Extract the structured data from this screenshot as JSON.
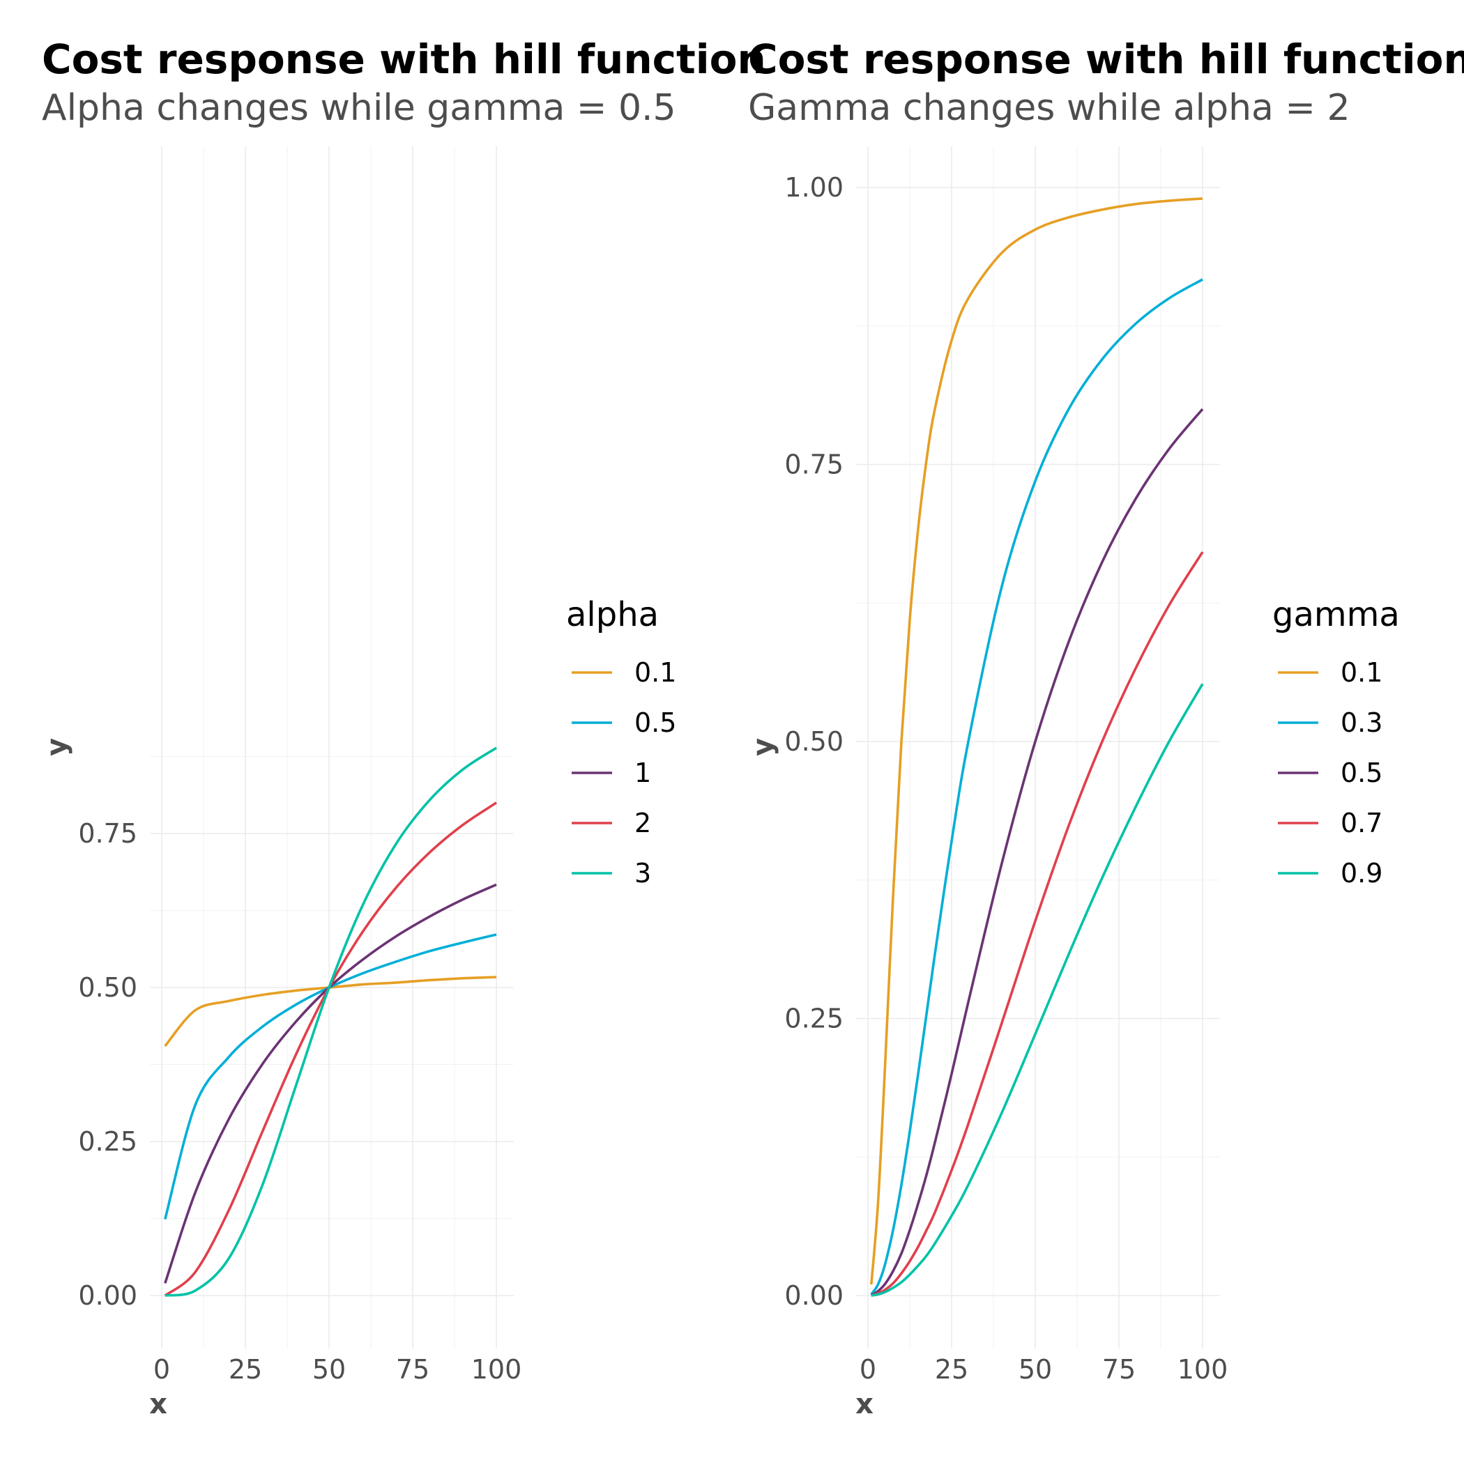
{
  "chart_data": [
    {
      "type": "line",
      "title": "Cost response with hill function",
      "subtitle": "Alpha changes while gamma = 0.5",
      "xlabel": "x",
      "ylabel": "y",
      "xlim": [
        0,
        100
      ],
      "ylim": [
        0,
        0.9
      ],
      "x_ticks": [
        0,
        25,
        50,
        75,
        100
      ],
      "x_tick_labels": [
        "0",
        "25",
        "50",
        "75",
        "100"
      ],
      "y_ticks": [
        0,
        0.25,
        0.5,
        0.75
      ],
      "y_tick_labels": [
        "0.00",
        "0.25",
        "0.50",
        "0.75"
      ],
      "grid": true,
      "legend_placement": "right",
      "legend_title": "alpha",
      "fixed_gamma": 0.5,
      "x": [
        1,
        10,
        20,
        30,
        40,
        50,
        60,
        70,
        80,
        90,
        100
      ],
      "series": [
        {
          "name": "0.1",
          "color": "#E69F24",
          "values": [
            0.405,
            0.463,
            0.478,
            0.488,
            0.495,
            0.5,
            0.505,
            0.508,
            0.512,
            0.515,
            0.517
          ]
        },
        {
          "name": "0.5",
          "color": "#00AFD7",
          "values": [
            0.124,
            0.309,
            0.387,
            0.436,
            0.472,
            0.5,
            0.523,
            0.542,
            0.559,
            0.573,
            0.586
          ]
        },
        {
          "name": "1",
          "color": "#6B3374",
          "values": [
            0.02,
            0.167,
            0.286,
            0.375,
            0.444,
            0.5,
            0.545,
            0.583,
            0.615,
            0.643,
            0.667
          ]
        },
        {
          "name": "2",
          "color": "#E0404C",
          "values": [
            0.0,
            0.038,
            0.138,
            0.265,
            0.39,
            0.5,
            0.59,
            0.662,
            0.719,
            0.764,
            0.8
          ]
        },
        {
          "name": "3",
          "color": "#00C2A7",
          "values": [
            0.0,
            0.008,
            0.06,
            0.178,
            0.339,
            0.5,
            0.633,
            0.733,
            0.804,
            0.854,
            0.889
          ]
        }
      ]
    },
    {
      "type": "line",
      "title": "Cost response with hill function",
      "subtitle": "Gamma changes while alpha = 2",
      "xlabel": "x",
      "ylabel": "y",
      "xlim": [
        0,
        100
      ],
      "ylim": [
        0,
        1.0
      ],
      "x_ticks": [
        0,
        25,
        50,
        75,
        100
      ],
      "x_tick_labels": [
        "0",
        "25",
        "50",
        "75",
        "100"
      ],
      "y_ticks": [
        0,
        0.25,
        0.5,
        0.75,
        1.0
      ],
      "y_tick_labels": [
        "0.00",
        "0.25",
        "0.50",
        "0.75",
        "1.00"
      ],
      "grid": true,
      "legend_placement": "right",
      "legend_title": "gamma",
      "fixed_alpha": 2,
      "x": [
        1,
        3,
        5,
        7.5,
        10,
        12.5,
        15,
        17.5,
        20,
        25,
        30,
        40,
        50,
        60,
        70,
        80,
        90,
        100
      ],
      "series": [
        {
          "name": "0.1",
          "color": "#E69F24",
          "values": [
            0.01,
            0.083,
            0.2,
            0.36,
            0.5,
            0.61,
            0.692,
            0.754,
            0.8,
            0.862,
            0.9,
            0.941,
            0.962,
            0.973,
            0.98,
            0.985,
            0.988,
            0.99
          ]
        },
        {
          "name": "0.3",
          "color": "#00AFD7",
          "values": [
            0.001,
            0.01,
            0.027,
            0.059,
            0.1,
            0.148,
            0.2,
            0.254,
            0.308,
            0.41,
            0.5,
            0.64,
            0.735,
            0.8,
            0.845,
            0.877,
            0.9,
            0.917
          ]
        },
        {
          "name": "0.5",
          "color": "#6B3374",
          "values": [
            0.0,
            0.004,
            0.01,
            0.022,
            0.038,
            0.059,
            0.083,
            0.109,
            0.138,
            0.2,
            0.265,
            0.39,
            0.5,
            0.59,
            0.662,
            0.719,
            0.764,
            0.8
          ]
        },
        {
          "name": "0.7",
          "color": "#E0404C",
          "values": [
            0.0,
            0.002,
            0.005,
            0.011,
            0.02,
            0.031,
            0.044,
            0.059,
            0.075,
            0.113,
            0.155,
            0.246,
            0.338,
            0.424,
            0.5,
            0.566,
            0.623,
            0.671
          ]
        },
        {
          "name": "0.9",
          "color": "#00C2A7",
          "values": [
            0.0,
            0.001,
            0.003,
            0.007,
            0.012,
            0.019,
            0.027,
            0.036,
            0.047,
            0.072,
            0.1,
            0.165,
            0.236,
            0.308,
            0.377,
            0.441,
            0.5,
            0.552
          ]
        }
      ]
    }
  ]
}
